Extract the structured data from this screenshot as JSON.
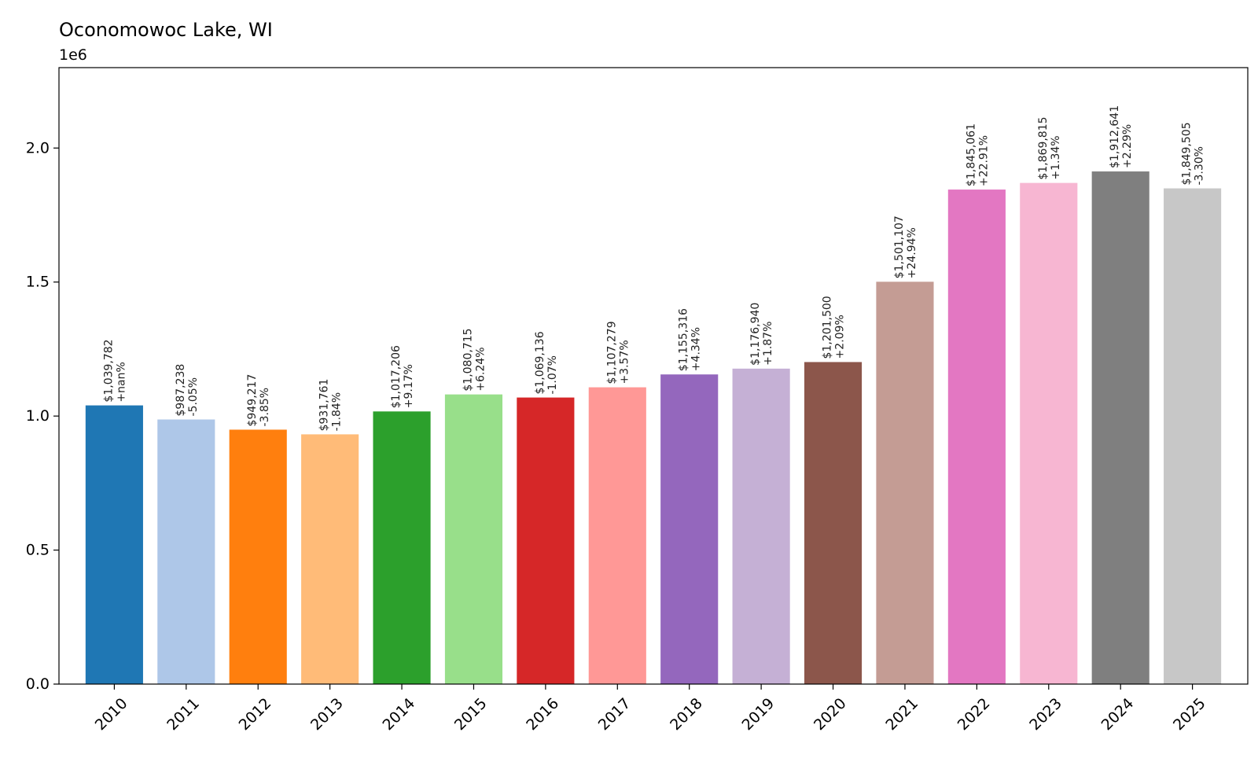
{
  "chart_data": {
    "type": "bar",
    "title": "Oconomowoc Lake, WI",
    "y_offset_label": "1e6",
    "xlabel": "",
    "ylabel": "",
    "ylim": [
      0,
      2300000
    ],
    "yticks": [
      0,
      500000,
      1000000,
      1500000,
      2000000
    ],
    "ytick_labels": [
      "0.0",
      "0.5",
      "1.0",
      "1.5",
      "2.0"
    ],
    "grid": false,
    "legend": "none",
    "categories": [
      "2010",
      "2011",
      "2012",
      "2013",
      "2014",
      "2015",
      "2016",
      "2017",
      "2018",
      "2019",
      "2020",
      "2021",
      "2022",
      "2023",
      "2024",
      "2025"
    ],
    "values": [
      1039782,
      987238,
      949217,
      931761,
      1017206,
      1080715,
      1069136,
      1107279,
      1155316,
      1176940,
      1201500,
      1501107,
      1845061,
      1869815,
      1912641,
      1849505
    ],
    "value_labels": [
      "$1,039,782",
      "$987,238",
      "$949,217",
      "$931,761",
      "$1,017,206",
      "$1,080,715",
      "$1,069,136",
      "$1,107,279",
      "$1,155,316",
      "$1,176,940",
      "$1,201,500",
      "$1,501,107",
      "$1,845,061",
      "$1,869,815",
      "$1,912,641",
      "$1,849,505"
    ],
    "change_labels": [
      "+nan%",
      "-5.05%",
      "-3.85%",
      "-1.84%",
      "+9.17%",
      "+6.24%",
      "-1.07%",
      "+3.57%",
      "+4.34%",
      "+1.87%",
      "+2.09%",
      "+24.94%",
      "+22.91%",
      "+1.34%",
      "+2.29%",
      "-3.30%"
    ],
    "colors": [
      "#1f77b4",
      "#aec7e8",
      "#ff7f0e",
      "#ffbb78",
      "#2ca02c",
      "#98df8a",
      "#d62728",
      "#ff9896",
      "#9467bd",
      "#c5b0d5",
      "#8c564b",
      "#c49c94",
      "#e377c2",
      "#f7b6d2",
      "#7f7f7f",
      "#c7c7c7"
    ]
  }
}
